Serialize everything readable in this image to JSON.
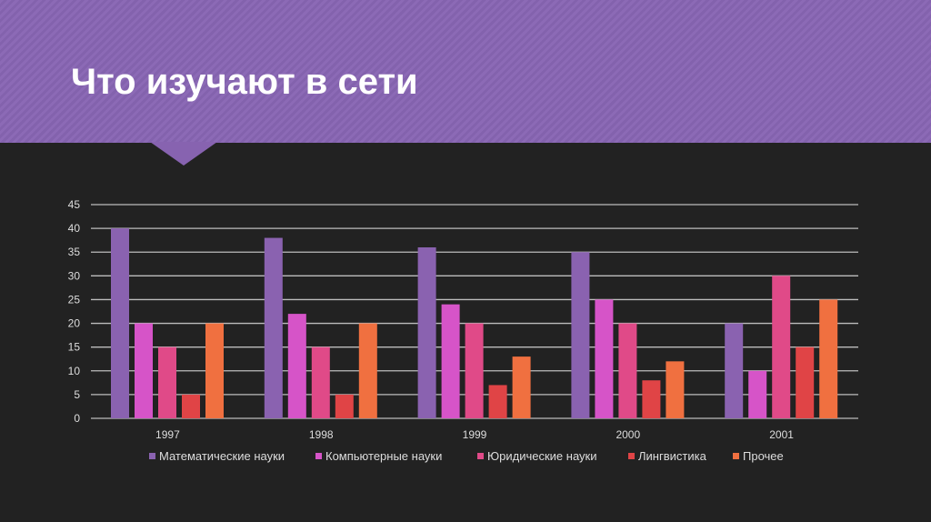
{
  "title": "Что изучают в сети",
  "chart_data": {
    "type": "bar",
    "categories": [
      "1997",
      "1998",
      "1999",
      "2000",
      "2001"
    ],
    "series": [
      {
        "name": "Математические науки",
        "values": [
          40,
          38,
          36,
          35,
          20
        ],
        "color": "#8a62b0"
      },
      {
        "name": "Компьютерные науки",
        "values": [
          20,
          22,
          24,
          25,
          10
        ],
        "color": "#d654c8"
      },
      {
        "name": "Юридические науки",
        "values": [
          15,
          15,
          20,
          20,
          30
        ],
        "color": "#e04a88"
      },
      {
        "name": "Лингвистика",
        "values": [
          5,
          5,
          7,
          8,
          15
        ],
        "color": "#e04446"
      },
      {
        "name": "Прочее",
        "values": [
          20,
          20,
          13,
          12,
          25
        ],
        "color": "#f07040"
      }
    ],
    "ylim": [
      0,
      45
    ],
    "yticks": [
      "0",
      "5",
      "10",
      "15",
      "20",
      "25",
      "30",
      "35",
      "40",
      "45"
    ],
    "grid": true,
    "legend": "bottom"
  }
}
